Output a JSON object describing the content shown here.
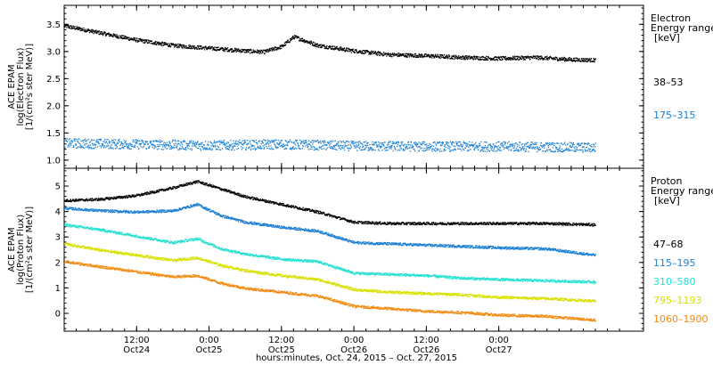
{
  "chart_data": [
    {
      "type": "scatter",
      "ylabel_lines": [
        "ACE EPAM",
        "log(Electron Flux)",
        "[1/(cm²s ster MeV)]"
      ],
      "ylim": [
        0.85,
        3.85
      ],
      "yticks": [
        {
          "v": 1.0,
          "label": "1.0"
        },
        {
          "v": 1.5,
          "label": "1.5"
        },
        {
          "v": 2.0,
          "label": "2.0"
        },
        {
          "v": 2.5,
          "label": "2.5"
        },
        {
          "v": 3.0,
          "label": "3.0"
        },
        {
          "v": 3.5,
          "label": "3.5"
        }
      ],
      "legend": {
        "title_lines": [
          "Electron",
          "Energy range",
          "[keV]"
        ],
        "entries": [
          {
            "name": "38–53",
            "color": "#000000"
          },
          {
            "name": "175–315",
            "color": "#1a7fd4"
          }
        ]
      },
      "series": [
        {
          "name": "38–53",
          "color": "#000000",
          "points": [
            [
              0,
              3.48
            ],
            [
              6,
              3.35
            ],
            [
              12,
              3.22
            ],
            [
              18,
              3.12
            ],
            [
              24,
              3.07
            ],
            [
              30,
              3.02
            ],
            [
              33,
              3.0
            ],
            [
              36,
              3.1
            ],
            [
              38,
              3.28
            ],
            [
              42,
              3.12
            ],
            [
              48,
              3.02
            ],
            [
              54,
              2.95
            ],
            [
              60,
              2.93
            ],
            [
              66,
              2.9
            ],
            [
              72,
              2.88
            ],
            [
              78,
              2.9
            ],
            [
              84,
              2.86
            ],
            [
              88,
              2.85
            ]
          ]
        },
        {
          "name": "175–315",
          "color": "#1a7fd4",
          "points": [
            [
              0,
              1.32
            ],
            [
              12,
              1.3
            ],
            [
              24,
              1.28
            ],
            [
              36,
              1.3
            ],
            [
              48,
              1.27
            ],
            [
              60,
              1.26
            ],
            [
              72,
              1.26
            ],
            [
              88,
              1.24
            ]
          ]
        }
      ]
    },
    {
      "type": "scatter",
      "ylabel_lines": [
        "ACE EPAM",
        "log(Proton Flux)",
        "[1/(cm²s ster MeV)]"
      ],
      "ylim": [
        -0.7,
        5.7
      ],
      "yticks": [
        {
          "v": 0,
          "label": "0"
        },
        {
          "v": 1,
          "label": "1"
        },
        {
          "v": 2,
          "label": "2"
        },
        {
          "v": 3,
          "label": "3"
        },
        {
          "v": 4,
          "label": "4"
        },
        {
          "v": 5,
          "label": "5"
        }
      ],
      "legend": {
        "title_lines": [
          "Proton",
          "Energy range",
          "[keV]"
        ],
        "entries": [
          {
            "name": "47–68",
            "color": "#000000"
          },
          {
            "name": "115–195",
            "color": "#1a7fd4"
          },
          {
            "name": "310–580",
            "color": "#22e0d0"
          },
          {
            "name": "795–1193",
            "color": "#d8e000"
          },
          {
            "name": "1060–1900",
            "color": "#f08a10"
          }
        ]
      },
      "series": [
        {
          "name": "47–68",
          "color": "#000000",
          "points": [
            [
              0,
              4.45
            ],
            [
              6,
              4.5
            ],
            [
              12,
              4.65
            ],
            [
              18,
              4.95
            ],
            [
              22,
              5.2
            ],
            [
              26,
              4.9
            ],
            [
              30,
              4.6
            ],
            [
              36,
              4.3
            ],
            [
              42,
              4.0
            ],
            [
              48,
              3.6
            ],
            [
              54,
              3.55
            ],
            [
              60,
              3.55
            ],
            [
              66,
              3.55
            ],
            [
              72,
              3.55
            ],
            [
              80,
              3.55
            ],
            [
              88,
              3.5
            ]
          ]
        },
        {
          "name": "115–195",
          "color": "#1a7fd4",
          "points": [
            [
              0,
              4.15
            ],
            [
              6,
              4.05
            ],
            [
              12,
              4.0
            ],
            [
              18,
              4.05
            ],
            [
              22,
              4.3
            ],
            [
              26,
              3.85
            ],
            [
              30,
              3.6
            ],
            [
              36,
              3.4
            ],
            [
              42,
              3.25
            ],
            [
              48,
              2.8
            ],
            [
              54,
              2.75
            ],
            [
              60,
              2.7
            ],
            [
              66,
              2.65
            ],
            [
              72,
              2.6
            ],
            [
              80,
              2.55
            ],
            [
              88,
              2.3
            ]
          ]
        },
        {
          "name": "310–580",
          "color": "#22e0d0",
          "points": [
            [
              0,
              3.5
            ],
            [
              6,
              3.3
            ],
            [
              12,
              3.05
            ],
            [
              18,
              2.8
            ],
            [
              22,
              2.95
            ],
            [
              26,
              2.55
            ],
            [
              30,
              2.35
            ],
            [
              36,
              2.15
            ],
            [
              42,
              2.05
            ],
            [
              48,
              1.6
            ],
            [
              54,
              1.55
            ],
            [
              60,
              1.5
            ],
            [
              66,
              1.4
            ],
            [
              72,
              1.35
            ],
            [
              80,
              1.3
            ],
            [
              88,
              1.25
            ]
          ]
        },
        {
          "name": "795–1193",
          "color": "#d8e000",
          "points": [
            [
              0,
              2.75
            ],
            [
              6,
              2.5
            ],
            [
              12,
              2.3
            ],
            [
              18,
              2.1
            ],
            [
              22,
              2.2
            ],
            [
              26,
              1.9
            ],
            [
              30,
              1.7
            ],
            [
              36,
              1.5
            ],
            [
              42,
              1.35
            ],
            [
              48,
              0.95
            ],
            [
              54,
              0.85
            ],
            [
              60,
              0.8
            ],
            [
              66,
              0.75
            ],
            [
              72,
              0.65
            ],
            [
              80,
              0.6
            ],
            [
              88,
              0.5
            ]
          ]
        },
        {
          "name": "1060–1900",
          "color": "#f08a10",
          "points": [
            [
              0,
              2.05
            ],
            [
              6,
              1.85
            ],
            [
              12,
              1.65
            ],
            [
              18,
              1.45
            ],
            [
              22,
              1.5
            ],
            [
              26,
              1.2
            ],
            [
              30,
              1.0
            ],
            [
              36,
              0.85
            ],
            [
              42,
              0.7
            ],
            [
              48,
              0.3
            ],
            [
              54,
              0.2
            ],
            [
              60,
              0.1
            ],
            [
              66,
              0.05
            ],
            [
              72,
              -0.05
            ],
            [
              80,
              -0.1
            ],
            [
              88,
              -0.25
            ]
          ]
        }
      ]
    }
  ],
  "x_axis": {
    "range_hours": [
      0,
      88
    ],
    "ticks": [
      {
        "h": 12,
        "time": "12:00",
        "date": "Oct24"
      },
      {
        "h": 24,
        "time": "0:00",
        "date": "Oct25"
      },
      {
        "h": 36,
        "time": "12:00",
        "date": "Oct25"
      },
      {
        "h": 48,
        "time": "0:00",
        "date": "Oct26"
      },
      {
        "h": 60,
        "time": "12:00",
        "date": "Oct26"
      },
      {
        "h": 72,
        "time": "0:00",
        "date": "Oct27"
      }
    ],
    "xlabel": "hours:minutes, Oct. 24, 2015 – Oct. 27, 2015"
  }
}
